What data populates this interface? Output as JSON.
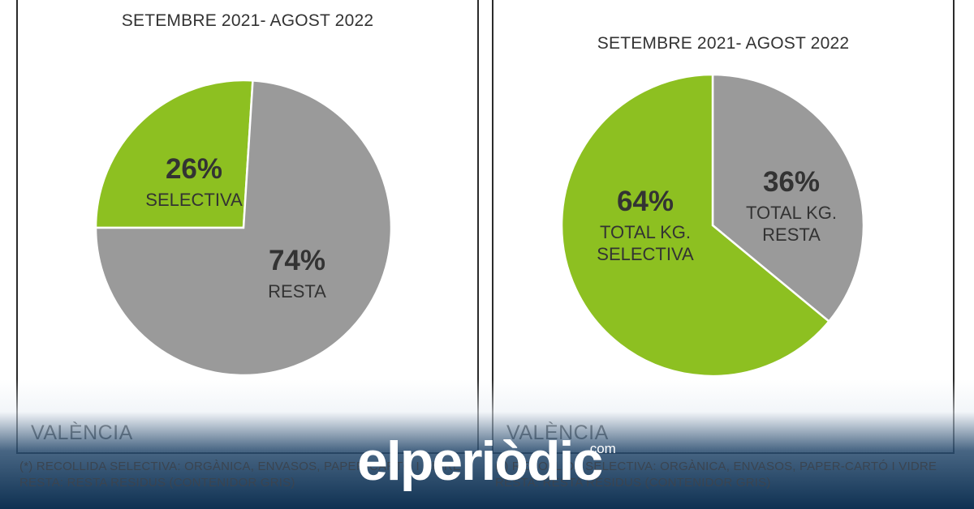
{
  "chart_data": [
    {
      "type": "pie",
      "title": "SETEMBRE 2021- AGOST 2022",
      "footer_label": "VALÈNCIA",
      "slices": [
        {
          "pct_label": "26%",
          "label": "SELECTIVA",
          "value": 26,
          "color": "#8dc021"
        },
        {
          "pct_label": "74%",
          "label": "RESTA",
          "value": 74,
          "color": "#9a9a9a"
        }
      ]
    },
    {
      "type": "pie",
      "title": "SETEMBRE 2021- AGOST 2022",
      "footer_label": "VALÈNCIA",
      "slices": [
        {
          "pct_label": "36%",
          "label": "TOTAL KG. RESTA",
          "label_lines": [
            "TOTAL KG.",
            "RESTA"
          ],
          "value": 36,
          "color": "#9a9a9a"
        },
        {
          "pct_label": "64%",
          "label": "TOTAL KG. SELECTIVA",
          "label_lines": [
            "TOTAL KG.",
            "SELECTIVA"
          ],
          "value": 64,
          "color": "#8dc021"
        }
      ]
    }
  ],
  "footnotes": {
    "left": [
      "(*) RECOLLIDA SELECTIVA: ORGÀNICA, ENVASOS, PAPER-CARTÓ I VIDRE",
      "RESTA: RESTA RESIDUS (CONTENIDOR GRIS)"
    ],
    "right": [
      "(*) RECOLLIDA SELECTIVA: ORGÀNICA, ENVASOS, PAPER-CARTÓ I VIDRE",
      "RESTA: RESTA RESIDUS (CONTENIDOR GRIS)"
    ]
  },
  "brand": {
    "name": "elperiòdic",
    "suffix": ".com"
  }
}
